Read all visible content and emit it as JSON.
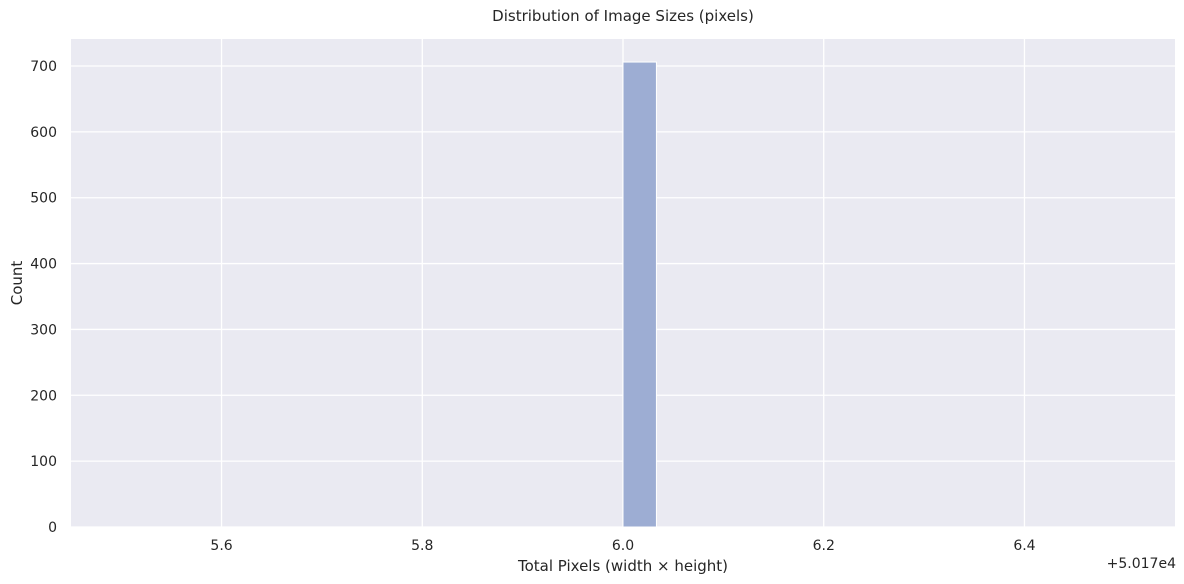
{
  "chart_data": {
    "type": "bar",
    "title": "Distribution of Image Sizes (pixels)",
    "xlabel": "Total Pixels (width × height)",
    "ylabel": "Count",
    "x_offset_label": "+5.017e4",
    "xlim": [
      5.45,
      6.55
    ],
    "ylim": [
      0,
      741
    ],
    "xticks": [
      5.6,
      5.8,
      6.0,
      6.2,
      6.4
    ],
    "xtick_labels": [
      "5.6",
      "5.8",
      "6.0",
      "6.2",
      "6.4"
    ],
    "yticks": [
      0,
      100,
      200,
      300,
      400,
      500,
      600,
      700
    ],
    "ytick_labels": [
      "0",
      "100",
      "200",
      "300",
      "400",
      "500",
      "600",
      "700"
    ],
    "grid": true,
    "bins": [
      {
        "x0": 6.0,
        "x1": 6.0333,
        "count": 706
      }
    ],
    "colors": {
      "background": "#eaeaf2",
      "grid": "#ffffff",
      "bar_fill": "#9dadd3",
      "bar_edge": "#ffffff",
      "text": "#262626"
    }
  }
}
